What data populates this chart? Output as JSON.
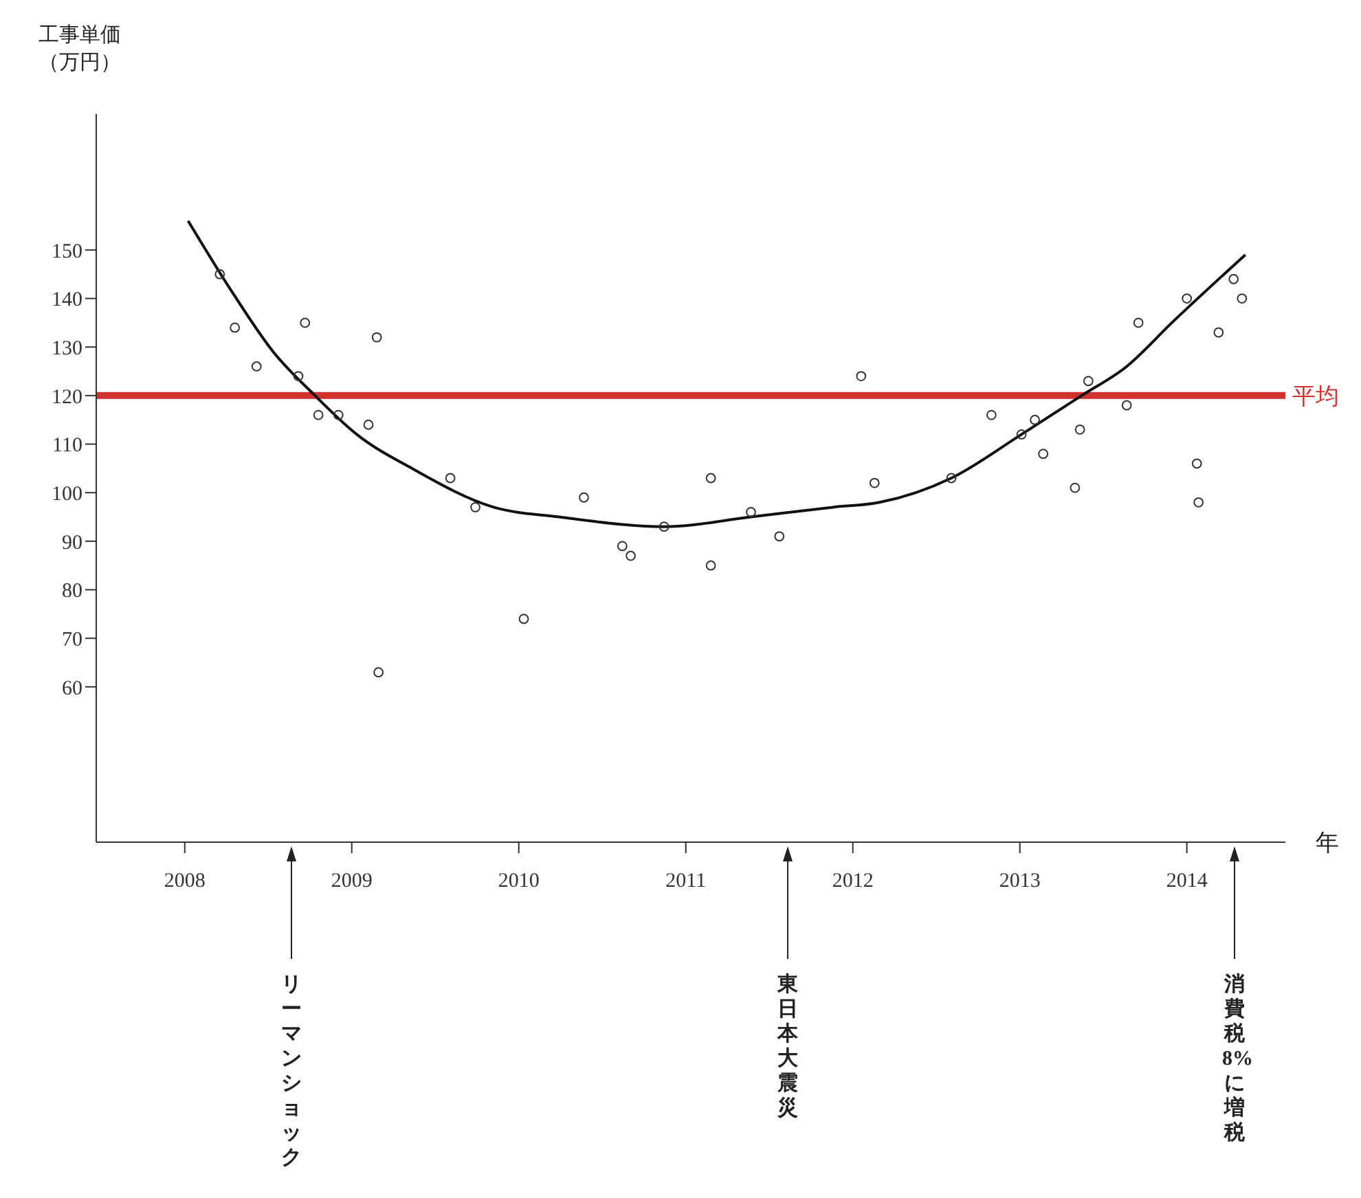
{
  "chart_data": {
    "type": "scatter",
    "ylabel": "工事単価（万円）",
    "xlabel": "年",
    "xlim": [
      2007.47,
      2014.59
    ],
    "xticks": [
      2008,
      2009,
      2010,
      2011,
      2012,
      2013,
      2014
    ],
    "ylim": [
      28,
      178
    ],
    "yticks": [
      60,
      70,
      80,
      90,
      100,
      110,
      120,
      130,
      140,
      150
    ],
    "grid": false,
    "marker": "circle",
    "series": [
      {
        "type": "scatter",
        "color": "#333333",
        "x": [
          2008.21,
          2008.3,
          2008.43,
          2008.72,
          2008.68,
          2008.8,
          2008.92,
          2009.1,
          2009.15,
          2009.16,
          2009.59,
          2009.74,
          2010.03,
          2010.39,
          2010.62,
          2010.67,
          2010.87,
          2011.15,
          2011.15,
          2011.39,
          2011.56,
          2012.05,
          2012.13,
          2012.59,
          2012.83,
          2013.01,
          2013.09,
          2013.14,
          2013.33,
          2013.36,
          2013.41,
          2013.64,
          2013.71,
          2014.0,
          2014.19,
          2014.28,
          2014.33,
          2014.06,
          2014.07
        ],
        "values": [
          145,
          134,
          126,
          135,
          124,
          116,
          116,
          114,
          132,
          63,
          103,
          97,
          74,
          99,
          89,
          87,
          93,
          103,
          85,
          96,
          91,
          124,
          102,
          103,
          116,
          112,
          115,
          108,
          101,
          113,
          123,
          118,
          135,
          140,
          133,
          144,
          140,
          106,
          98
        ]
      },
      {
        "type": "line",
        "color": "#111111",
        "line_style": "solid",
        "marker": "none",
        "x": [
          2008.02,
          2008.29,
          2008.53,
          2008.78,
          2009.03,
          2009.36,
          2009.85,
          2010.24,
          2010.87,
          2011.39,
          2011.88,
          2012.16,
          2012.59,
          2013.01,
          2013.37,
          2013.64,
          2013.91,
          2014.35
        ],
        "values": [
          156,
          141,
          129,
          120,
          112,
          105,
          97,
          95,
          93,
          95,
          97,
          98,
          103,
          112,
          120,
          126,
          135,
          149
        ]
      }
    ],
    "ref_lines": [
      {
        "axis": "y",
        "value": 120,
        "label": "平均",
        "color": "#d22f2f"
      }
    ],
    "annotations": [
      "リーマンショック",
      "東日本大震災",
      "消費税8%に増税"
    ]
  }
}
